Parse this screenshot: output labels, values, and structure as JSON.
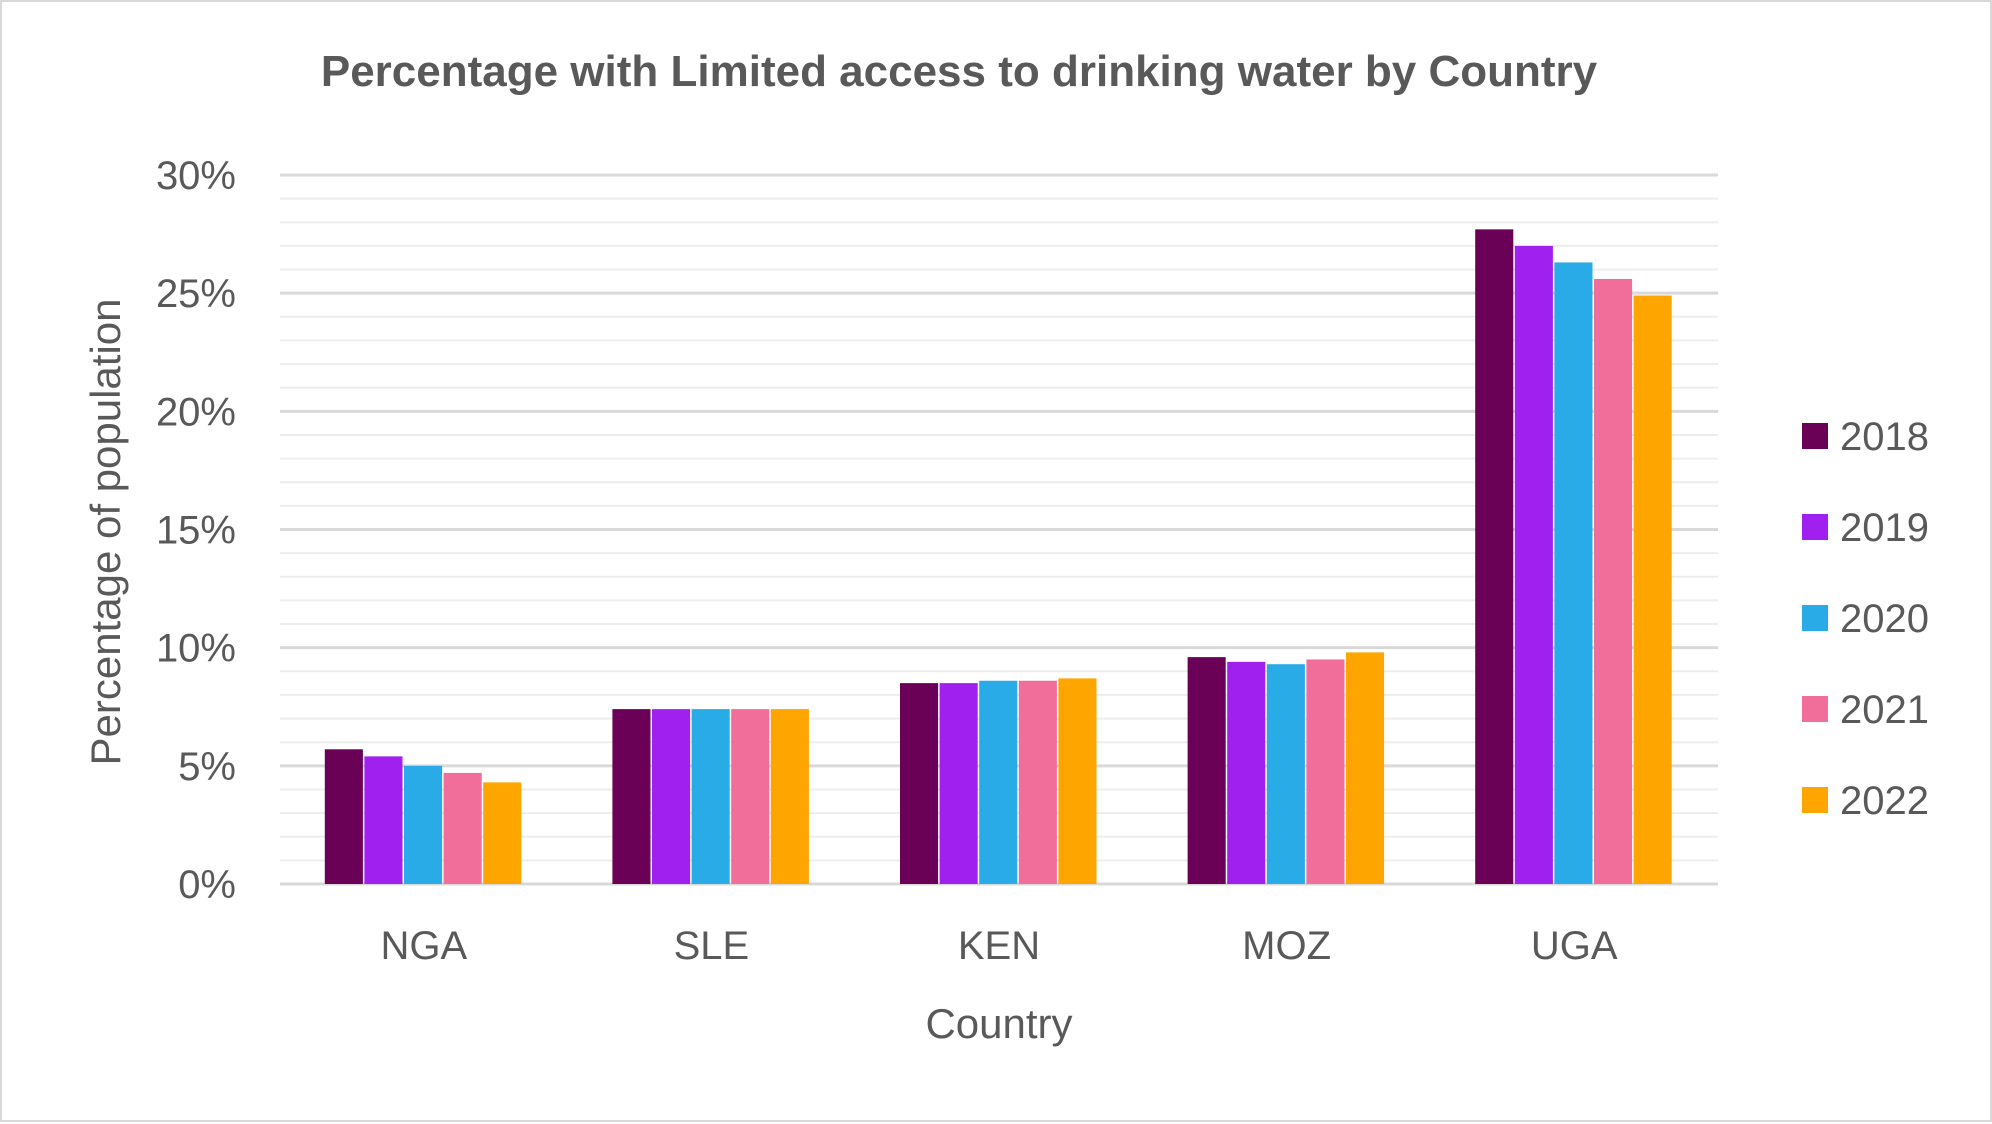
{
  "chart_data": {
    "type": "bar",
    "title": "Percentage with Limited access to drinking water by Country",
    "xlabel": "Country",
    "ylabel": "Percentage of population",
    "categories": [
      "NGA",
      "SLE",
      "KEN",
      "MOZ",
      "UGA"
    ],
    "ylim": [
      0,
      30
    ],
    "yticks": [
      0,
      5,
      10,
      15,
      20,
      25,
      30
    ],
    "ytick_labels": [
      "0%",
      "5%",
      "10%",
      "15%",
      "20%",
      "25%",
      "30%"
    ],
    "y_format": "percent",
    "grid": true,
    "minor_grid": true,
    "legend_position": "right",
    "series": [
      {
        "name": "2018",
        "color": "#6B0057",
        "values": [
          5.7,
          7.4,
          8.5,
          9.6,
          27.7
        ]
      },
      {
        "name": "2019",
        "color": "#A020F0",
        "values": [
          5.4,
          7.4,
          8.5,
          9.4,
          27.0
        ]
      },
      {
        "name": "2020",
        "color": "#29ABE8",
        "values": [
          5.0,
          7.4,
          8.6,
          9.3,
          26.3
        ]
      },
      {
        "name": "2021",
        "color": "#F06E99",
        "values": [
          4.7,
          7.4,
          8.6,
          9.5,
          25.6
        ]
      },
      {
        "name": "2022",
        "color": "#FFA500",
        "values": [
          4.3,
          7.4,
          8.7,
          9.8,
          24.9
        ]
      }
    ]
  }
}
